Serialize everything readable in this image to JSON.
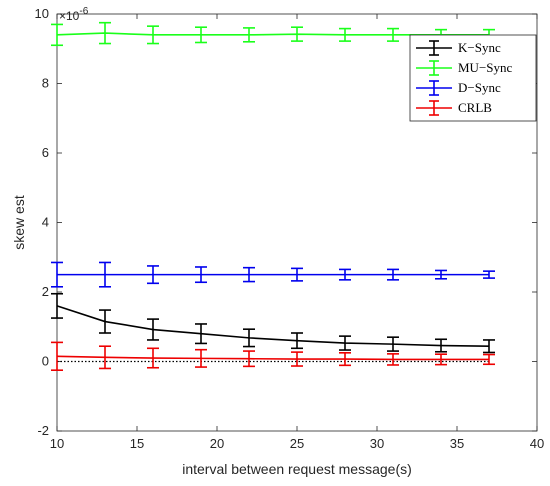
{
  "chart_data": {
    "type": "line",
    "xlabel": "interval between request message(s)",
    "ylabel": "skew est",
    "exponent_label": "×10",
    "exponent_power": "-6",
    "xlim": [
      10,
      40
    ],
    "ylim": [
      -2,
      10
    ],
    "xticks": [
      10,
      15,
      20,
      25,
      30,
      35,
      40
    ],
    "yticks": [
      -2,
      0,
      2,
      4,
      6,
      8,
      10
    ],
    "legend_position": "top-right",
    "x": [
      10,
      13,
      16,
      19,
      22,
      25,
      28,
      31,
      34,
      37
    ],
    "series": [
      {
        "name": "K−Sync",
        "color": "#000000",
        "values": [
          1.6,
          1.15,
          0.92,
          0.8,
          0.68,
          0.6,
          0.53,
          0.5,
          0.46,
          0.44
        ],
        "errors": [
          0.35,
          0.33,
          0.3,
          0.28,
          0.25,
          0.22,
          0.2,
          0.2,
          0.18,
          0.18
        ]
      },
      {
        "name": "MU−Sync",
        "color": "#1aff1a",
        "values": [
          9.4,
          9.45,
          9.4,
          9.4,
          9.4,
          9.42,
          9.4,
          9.4,
          9.4,
          9.4
        ],
        "errors": [
          0.3,
          0.3,
          0.25,
          0.22,
          0.2,
          0.2,
          0.18,
          0.18,
          0.15,
          0.15
        ]
      },
      {
        "name": "D−Sync",
        "color": "#0000ee",
        "values": [
          2.5,
          2.5,
          2.5,
          2.5,
          2.5,
          2.5,
          2.5,
          2.5,
          2.5,
          2.5
        ],
        "errors": [
          0.35,
          0.35,
          0.25,
          0.22,
          0.2,
          0.18,
          0.15,
          0.15,
          0.12,
          0.1
        ]
      },
      {
        "name": "CRLB",
        "color": "#ee0000",
        "values": [
          0.15,
          0.12,
          0.1,
          0.09,
          0.08,
          0.07,
          0.07,
          0.06,
          0.06,
          0.06
        ],
        "errors": [
          0.4,
          0.32,
          0.28,
          0.25,
          0.22,
          0.2,
          0.18,
          0.16,
          0.15,
          0.14
        ]
      }
    ],
    "reference_line": {
      "y": 0,
      "style": "dotted",
      "color": "#000000"
    }
  }
}
